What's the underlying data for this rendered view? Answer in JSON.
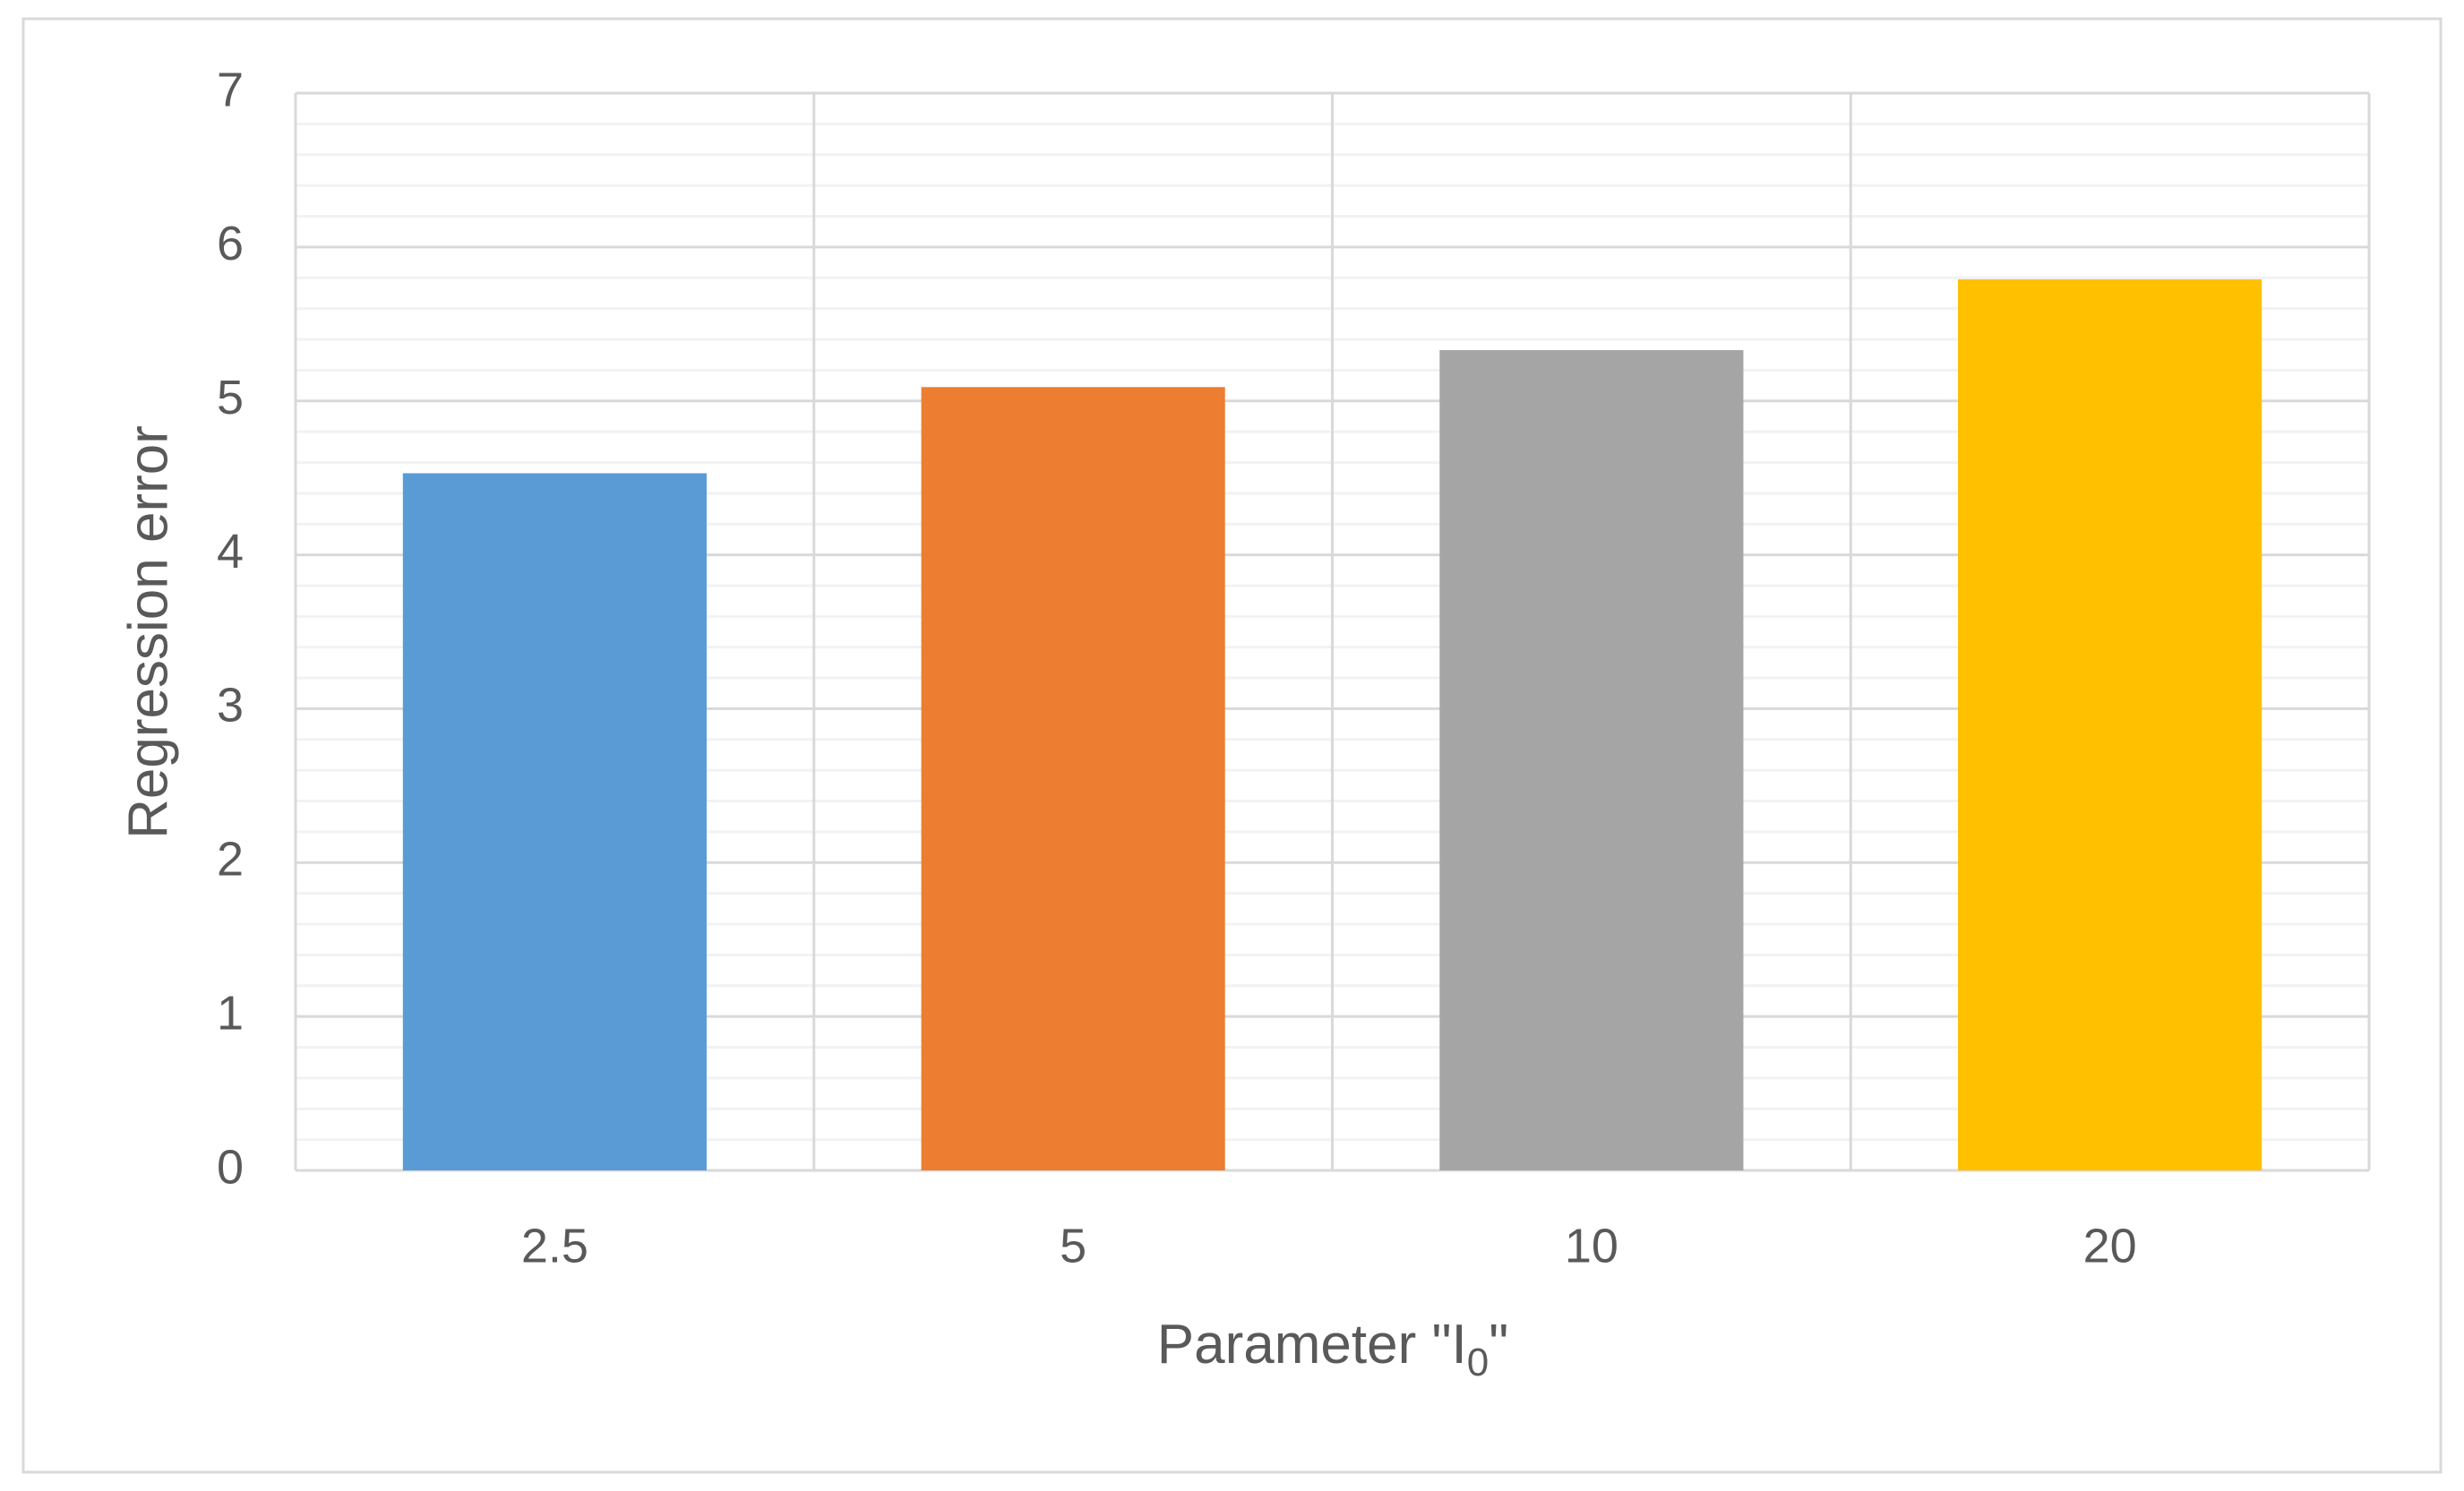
{
  "chart_data": {
    "type": "bar",
    "categories": [
      "2.5",
      "5",
      "10",
      "20"
    ],
    "values": [
      4.53,
      5.09,
      5.33,
      5.79
    ],
    "colors": [
      "#5b9bd5",
      "#ed7d31",
      "#a5a5a5",
      "#ffc000"
    ],
    "ylim": [
      0,
      7
    ],
    "yticks": [
      0,
      1,
      2,
      3,
      4,
      5,
      6,
      7
    ],
    "minor_yticks": [
      0.2,
      0.4,
      0.6,
      0.8,
      1.2,
      1.4,
      1.6,
      1.8,
      2.2,
      2.4,
      2.6,
      2.8,
      3.2,
      3.4,
      3.6,
      3.8,
      4.2,
      4.4,
      4.6,
      4.8,
      5.2,
      5.4,
      5.6,
      5.8,
      6.2,
      6.4,
      6.6,
      6.8
    ],
    "grid": true,
    "y_label": "Regression error",
    "x_label": {
      "main": "Parameter \"I",
      "subscript": "0",
      "end": "\""
    }
  }
}
